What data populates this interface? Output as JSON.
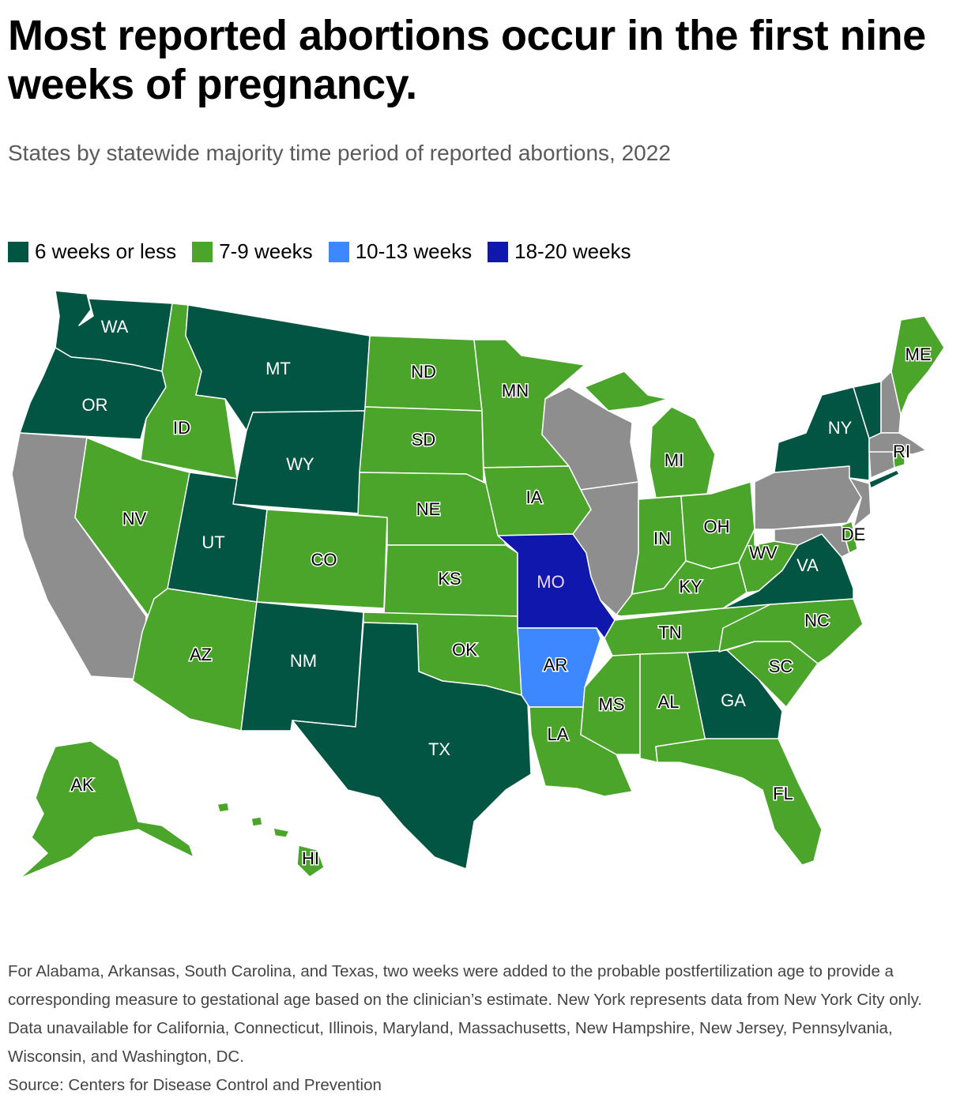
{
  "title": "Most reported abortions occur in the first nine weeks of pregnancy.",
  "subtitle": "States by statewide majority time period of reported abortions, 2022",
  "legend": [
    {
      "label": "6 weeks or less",
      "color": "#025542"
    },
    {
      "label": "7-9 weeks",
      "color": "#4ba52a"
    },
    {
      "label": "10-13 weeks",
      "color": "#3d87ff"
    },
    {
      "label": "18-20 weeks",
      "color": "#0f17ad"
    }
  ],
  "no_data_color": "#8e8e8e",
  "states": {
    "WA": {
      "label": "WA",
      "category": "6 weeks or less"
    },
    "OR": {
      "label": "OR",
      "category": "6 weeks or less"
    },
    "MT": {
      "label": "MT",
      "category": "6 weeks or less"
    },
    "WY": {
      "label": "WY",
      "category": "6 weeks or less"
    },
    "UT": {
      "label": "UT",
      "category": "6 weeks or less"
    },
    "NM": {
      "label": "NM",
      "category": "6 weeks or less"
    },
    "TX": {
      "label": "TX",
      "category": "6 weeks or less"
    },
    "GA": {
      "label": "GA",
      "category": "6 weeks or less"
    },
    "VA": {
      "label": "VA",
      "category": "6 weeks or less"
    },
    "NY": {
      "label": "NY",
      "category": "6 weeks or less"
    },
    "VT": {
      "label": "",
      "category": "6 weeks or less"
    },
    "ID": {
      "label": "ID",
      "category": "7-9 weeks"
    },
    "NV": {
      "label": "NV",
      "category": "7-9 weeks"
    },
    "AZ": {
      "label": "AZ",
      "category": "7-9 weeks"
    },
    "CO": {
      "label": "CO",
      "category": "7-9 weeks"
    },
    "ND": {
      "label": "ND",
      "category": "7-9 weeks"
    },
    "SD": {
      "label": "SD",
      "category": "7-9 weeks"
    },
    "NE": {
      "label": "NE",
      "category": "7-9 weeks"
    },
    "KS": {
      "label": "KS",
      "category": "7-9 weeks"
    },
    "OK": {
      "label": "OK",
      "category": "7-9 weeks"
    },
    "MN": {
      "label": "MN",
      "category": "7-9 weeks"
    },
    "IA": {
      "label": "IA",
      "category": "7-9 weeks"
    },
    "MI": {
      "label": "MI",
      "category": "7-9 weeks"
    },
    "IN": {
      "label": "IN",
      "category": "7-9 weeks"
    },
    "OH": {
      "label": "OH",
      "category": "7-9 weeks"
    },
    "KY": {
      "label": "KY",
      "category": "7-9 weeks"
    },
    "TN": {
      "label": "TN",
      "category": "7-9 weeks"
    },
    "WV": {
      "label": "WV",
      "category": "7-9 weeks"
    },
    "NC": {
      "label": "NC",
      "category": "7-9 weeks"
    },
    "SC": {
      "label": "SC",
      "category": "7-9 weeks"
    },
    "MS": {
      "label": "MS",
      "category": "7-9 weeks"
    },
    "AL": {
      "label": "AL",
      "category": "7-9 weeks"
    },
    "LA": {
      "label": "LA",
      "category": "7-9 weeks"
    },
    "FL": {
      "label": "FL",
      "category": "7-9 weeks"
    },
    "ME": {
      "label": "ME",
      "category": "7-9 weeks"
    },
    "DE": {
      "label": "DE",
      "category": "7-9 weeks"
    },
    "RI": {
      "label": "RI",
      "category": "7-9 weeks"
    },
    "AK": {
      "label": "AK",
      "category": "7-9 weeks"
    },
    "HI": {
      "label": "HI",
      "category": "7-9 weeks"
    },
    "AR": {
      "label": "AR",
      "category": "10-13 weeks"
    },
    "MO": {
      "label": "MO",
      "category": "18-20 weeks"
    },
    "CA": {
      "label": "",
      "category": "no data"
    },
    "WI": {
      "label": "",
      "category": "no data"
    },
    "IL": {
      "label": "",
      "category": "no data"
    },
    "PA": {
      "label": "",
      "category": "no data"
    },
    "NH": {
      "label": "",
      "category": "no data"
    },
    "MA": {
      "label": "",
      "category": "no data"
    },
    "CT": {
      "label": "",
      "category": "no data"
    },
    "NJ": {
      "label": "",
      "category": "no data"
    },
    "MD": {
      "label": "",
      "category": "no data"
    }
  },
  "footnote": "For Alabama, Arkansas, South Carolina, and Texas, two weeks were added to the probable postfertilization age to provide a corresponding measure to gestational age based on the clinician’s estimate. New York represents data from New York City only. Data unavailable for California, Connecticut, Illinois, Maryland, Massachusetts, New Hampshire, New Jersey, Pennsylvania, Wisconsin, and Washington, DC.",
  "source": "Source: Centers for Disease Control and Prevention"
}
